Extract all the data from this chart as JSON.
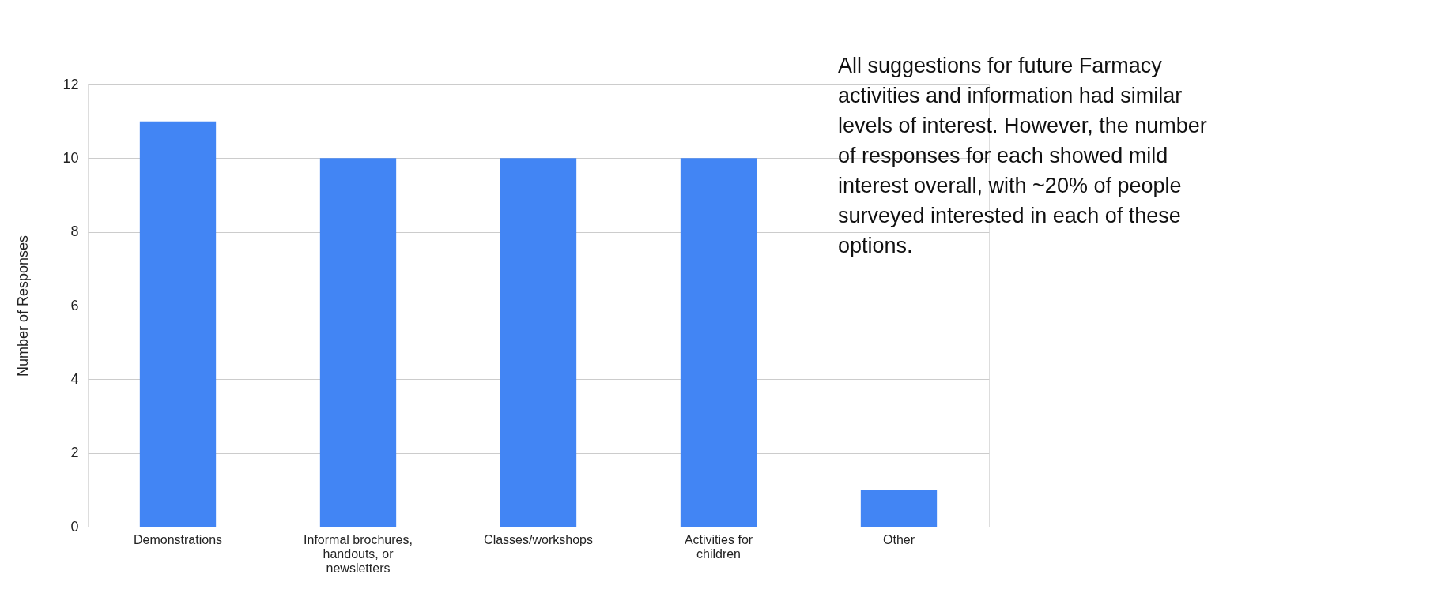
{
  "chart_data": {
    "type": "bar",
    "categories": [
      "Demonstrations",
      "Informal brochures, handouts, or newsletters",
      "Classes/workshops",
      "Activities for children",
      "Other"
    ],
    "values": [
      11,
      10,
      10,
      10,
      1
    ],
    "color": "#4285f4",
    "ylabel": "Number of Responses",
    "ylim": [
      0,
      12
    ],
    "yticks": [
      0,
      2,
      4,
      6,
      8,
      10,
      12
    ],
    "grid": "y",
    "annotations": [
      "All suggestions for future Farmacy activities and information had similar levels of interest. However, the number of responses for each showed mild interest overall, with ~20% of people surveyed interested in each of these options."
    ]
  }
}
